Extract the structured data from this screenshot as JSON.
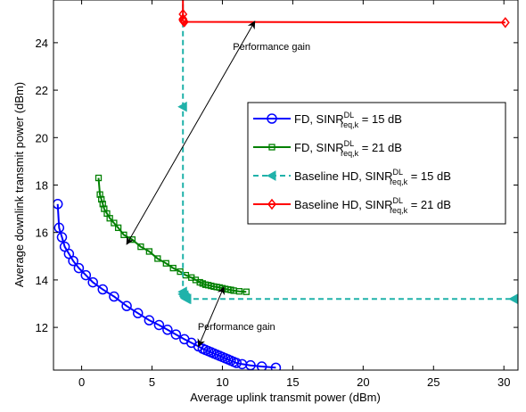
{
  "chart_data": {
    "type": "line",
    "title": "",
    "xlabel": "Average uplink transmit power (dBm)",
    "ylabel": "Average downlink transmit power (dBm)",
    "xlim": [
      -2,
      31
    ],
    "ylim": [
      10.2,
      25.8
    ],
    "xticks": [
      "0",
      "5",
      "10",
      "15",
      "20",
      "25",
      "30"
    ],
    "yticks": [
      "12",
      "14",
      "16",
      "18",
      "20",
      "22",
      "24"
    ],
    "xtick_values": [
      0,
      5,
      10,
      15,
      20,
      25,
      30
    ],
    "ytick_values": [
      12,
      14,
      16,
      18,
      20,
      22,
      24
    ],
    "grid": false,
    "legend_position": "right",
    "series": [
      {
        "name_main": "FD, SINR",
        "name_sup": "DL",
        "name_sub": "req,k",
        "name_tail": " = 15 dB",
        "color": "#0000ff",
        "marker": "circle",
        "dash": "solid",
        "x": [
          -1.7,
          -1.6,
          -1.4,
          -1.2,
          -0.9,
          -0.6,
          -0.2,
          0.3,
          0.8,
          1.5,
          2.3,
          3.2,
          4.0,
          4.8,
          5.5,
          6.1,
          6.7,
          7.3,
          7.8,
          8.3,
          8.6,
          8.8,
          9.0,
          9.2,
          9.4,
          9.6,
          9.8,
          10.0,
          10.2,
          10.4,
          10.6,
          10.8,
          11.0,
          11.4,
          12.0,
          12.8,
          13.8
        ],
        "y": [
          17.2,
          16.2,
          15.8,
          15.4,
          15.1,
          14.8,
          14.5,
          14.2,
          13.9,
          13.6,
          13.3,
          12.9,
          12.6,
          12.3,
          12.1,
          11.9,
          11.7,
          11.5,
          11.35,
          11.2,
          11.1,
          11.05,
          11.0,
          10.95,
          10.9,
          10.85,
          10.8,
          10.75,
          10.7,
          10.65,
          10.6,
          10.55,
          10.5,
          10.45,
          10.4,
          10.35,
          10.3
        ]
      },
      {
        "name_main": "FD, SINR",
        "name_sup": "DL",
        "name_sub": "req,k",
        "name_tail": " = 21 dB",
        "color": "#008000",
        "marker": "square",
        "dash": "solid",
        "x": [
          1.2,
          1.3,
          1.4,
          1.5,
          1.6,
          1.8,
          2.0,
          2.3,
          2.6,
          3.0,
          3.6,
          4.2,
          4.8,
          5.4,
          6.0,
          6.5,
          7.0,
          7.4,
          7.8,
          8.1,
          8.4,
          8.6,
          8.8,
          9.0,
          9.2,
          9.4,
          9.6,
          9.8,
          10.0,
          10.2,
          10.4,
          10.6,
          10.8,
          11.2,
          11.7
        ],
        "y": [
          18.3,
          17.6,
          17.4,
          17.2,
          17.0,
          16.8,
          16.6,
          16.4,
          16.2,
          15.9,
          15.7,
          15.4,
          15.2,
          14.9,
          14.7,
          14.5,
          14.35,
          14.2,
          14.1,
          14.0,
          13.9,
          13.85,
          13.8,
          13.78,
          13.75,
          13.72,
          13.7,
          13.68,
          13.65,
          13.62,
          13.6,
          13.58,
          13.55,
          13.52,
          13.5
        ]
      },
      {
        "name_main": "Baseline HD, SINR",
        "name_sup": "DL",
        "name_sub": "req,k",
        "name_tail": " = 15 dB",
        "color": "#20b2aa",
        "marker": "triangle-left",
        "dash": "dashed",
        "x": [
          7.2,
          7.2,
          7.2,
          7.2,
          7.3,
          7.3,
          7.35,
          7.4,
          7.45,
          7.5,
          30.7
        ],
        "y": [
          26.0,
          21.3,
          13.5,
          13.4,
          13.35,
          13.3,
          13.25,
          13.22,
          13.2,
          13.2,
          13.2
        ]
      },
      {
        "name_main": "Baseline HD, SINR",
        "name_sup": "DL",
        "name_sub": "req,k",
        "name_tail": " = 21 dB",
        "color": "#ff0000",
        "marker": "diamond",
        "dash": "solid",
        "x": [
          7.2,
          7.2,
          7.2,
          7.2,
          7.25,
          7.3,
          30.1
        ],
        "y": [
          26.0,
          25.2,
          25.0,
          24.95,
          24.9,
          24.88,
          24.85
        ]
      }
    ],
    "annotations": [
      {
        "text": "Performance gain",
        "tx": 13.5,
        "ty": 23.7,
        "arrow": [
          [
            3.2,
            15.5
          ],
          [
            12.3,
            24.9
          ]
        ]
      },
      {
        "text": "Performance gain",
        "tx": 11.0,
        "ty": 11.9,
        "arrow": [
          [
            8.3,
            11.2
          ],
          [
            10.1,
            13.7
          ]
        ]
      }
    ]
  }
}
